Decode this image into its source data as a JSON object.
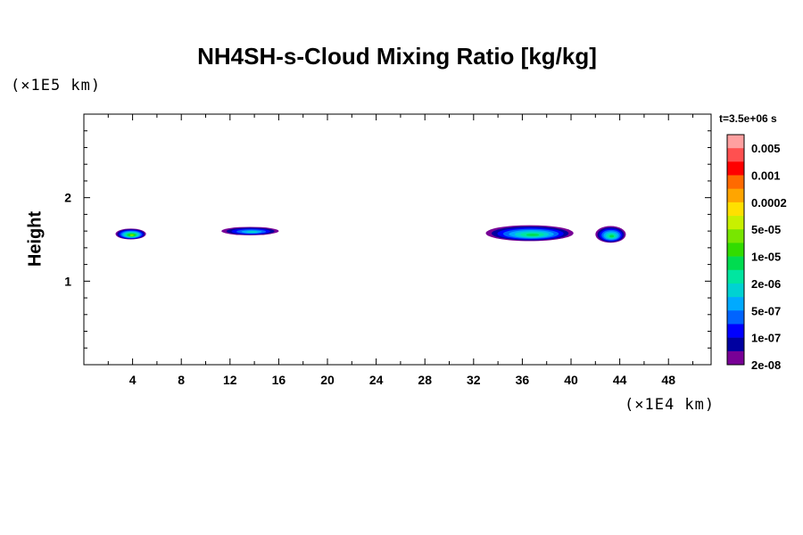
{
  "chart_data": {
    "type": "heatmap",
    "title": "NH4SH-s-Cloud Mixing Ratio [kg/kg]",
    "ylabel": "Height",
    "x_unit": "(×1E4 km)",
    "y_unit": "(×1E5 km)",
    "time_label": "t=3.5e+06 s",
    "xlim": [
      0,
      51.5
    ],
    "ylim": [
      0,
      3
    ],
    "x_ticks": [
      4,
      8,
      12,
      16,
      20,
      24,
      28,
      32,
      36,
      40,
      44,
      48
    ],
    "y_ticks": [
      1,
      2
    ],
    "x_minor_step": 2,
    "y_minor_step": 0.2,
    "colorbar": {
      "labels": [
        "0.005",
        "0.001",
        "0.0002",
        "5e-05",
        "1e-05",
        "2e-06",
        "5e-07",
        "1e-07",
        "2e-08"
      ],
      "colors": [
        "#ffa0a0",
        "#ff5050",
        "#ff0000",
        "#ff6a00",
        "#ffa500",
        "#ffe000",
        "#c8f000",
        "#78e600",
        "#32dc00",
        "#00dc50",
        "#00e6a0",
        "#00d2d2",
        "#00aaff",
        "#0064ff",
        "#0000ff",
        "#0000a0",
        "#780096"
      ]
    },
    "cloud_regions": [
      {
        "x_range": [
          2.6,
          5.1
        ],
        "y_range": [
          1.5,
          1.63
        ],
        "max_level": "5e-05"
      },
      {
        "x_range": [
          11.3,
          16.0
        ],
        "y_range": [
          1.55,
          1.65
        ],
        "max_level": "2e-06"
      },
      {
        "x_range": [
          33.0,
          40.2
        ],
        "y_range": [
          1.48,
          1.67
        ],
        "max_level": "1e-05"
      },
      {
        "x_range": [
          42.0,
          44.5
        ],
        "y_range": [
          1.46,
          1.66
        ],
        "max_level": "1e-05"
      }
    ]
  }
}
